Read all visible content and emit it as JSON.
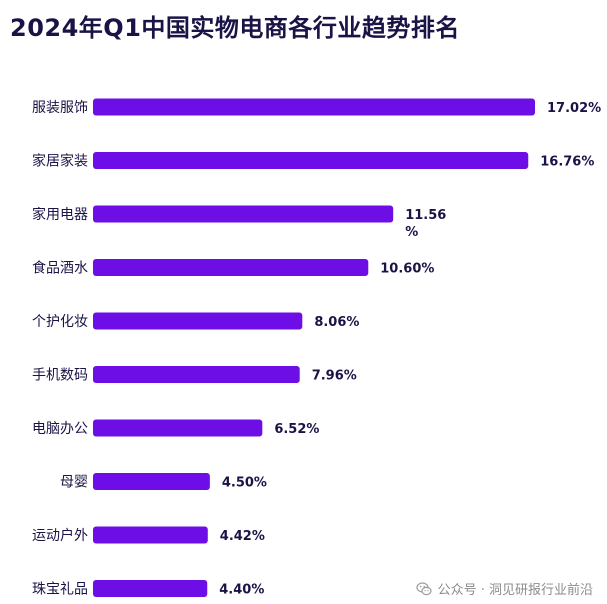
{
  "title": "2024年Q1中国实物电商各行业趋势排名",
  "watermark": {
    "text": "公众号 · 洞见研报行业前沿",
    "icon": "wechat-icon"
  },
  "colors": {
    "bar": "#6e0ee6",
    "title": "#1a1446",
    "label": "#1a1446",
    "value": "#1a1446"
  },
  "chart_data": {
    "type": "bar",
    "orientation": "horizontal",
    "title": "2024年Q1中国实物电商各行业趋势排名",
    "xlabel": "",
    "ylabel": "",
    "grid": false,
    "legend": "none",
    "xlim": [
      0,
      17.02
    ],
    "categories": [
      "服装服饰",
      "家居家装",
      "家用电器",
      "食品酒水",
      "个护化妆",
      "手机数码",
      "电脑办公",
      "母婴",
      "运动户外",
      "珠宝礼品"
    ],
    "values": [
      17.02,
      16.76,
      11.56,
      10.6,
      8.06,
      7.96,
      6.52,
      4.5,
      4.42,
      4.4
    ],
    "value_labels": [
      "17.02%",
      "16.76%",
      "11.56\n%",
      "10.60%",
      "8.06%",
      "7.96%",
      "6.52%",
      "4.50%",
      "4.42%",
      "4.40%"
    ]
  }
}
